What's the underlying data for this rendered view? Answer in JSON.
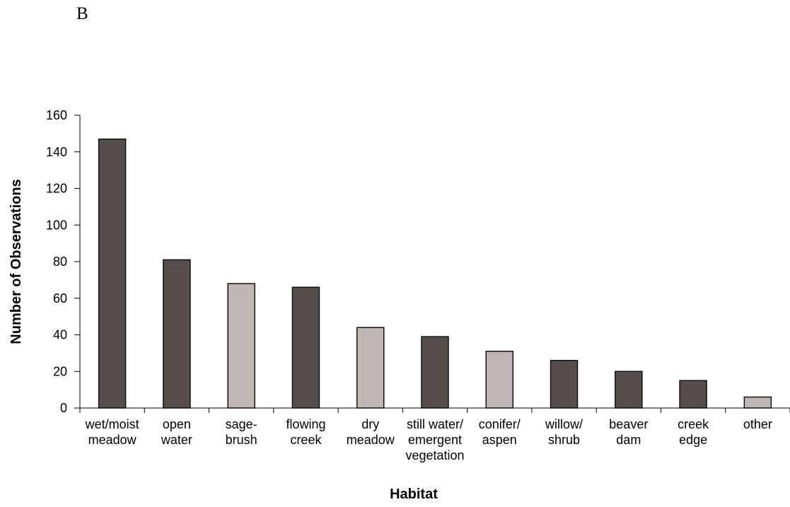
{
  "panel_label": "B",
  "chart_data": {
    "type": "bar",
    "xlabel": "Habitat",
    "ylabel": "Number of Observations",
    "ylim": [
      0,
      160
    ],
    "yticks": [
      0,
      20,
      40,
      60,
      80,
      100,
      120,
      140,
      160
    ],
    "grid": false,
    "categories": [
      [
        "wet/moist",
        "meadow"
      ],
      [
        "open",
        "water"
      ],
      [
        "sage-",
        "brush"
      ],
      [
        "flowing",
        "creek"
      ],
      [
        "dry",
        "meadow"
      ],
      [
        "still water/",
        "emergent",
        "vegetation"
      ],
      [
        "conifer/",
        "aspen"
      ],
      [
        "willow/",
        "shrub"
      ],
      [
        "beaver",
        "dam"
      ],
      [
        "creek",
        "edge"
      ],
      [
        "other"
      ]
    ],
    "values": [
      147,
      81,
      68,
      66,
      44,
      39,
      31,
      26,
      20,
      15,
      6
    ],
    "bar_colors": [
      "#574d4b",
      "#574d4b",
      "#c1b8b6",
      "#574d4b",
      "#c1b8b6",
      "#574d4b",
      "#c1b8b6",
      "#574d4b",
      "#574d4b",
      "#574d4b",
      "#c1b8b6"
    ],
    "colors": {
      "dark": "#574d4b",
      "light": "#c1b8b6",
      "edge": "#111111"
    }
  }
}
